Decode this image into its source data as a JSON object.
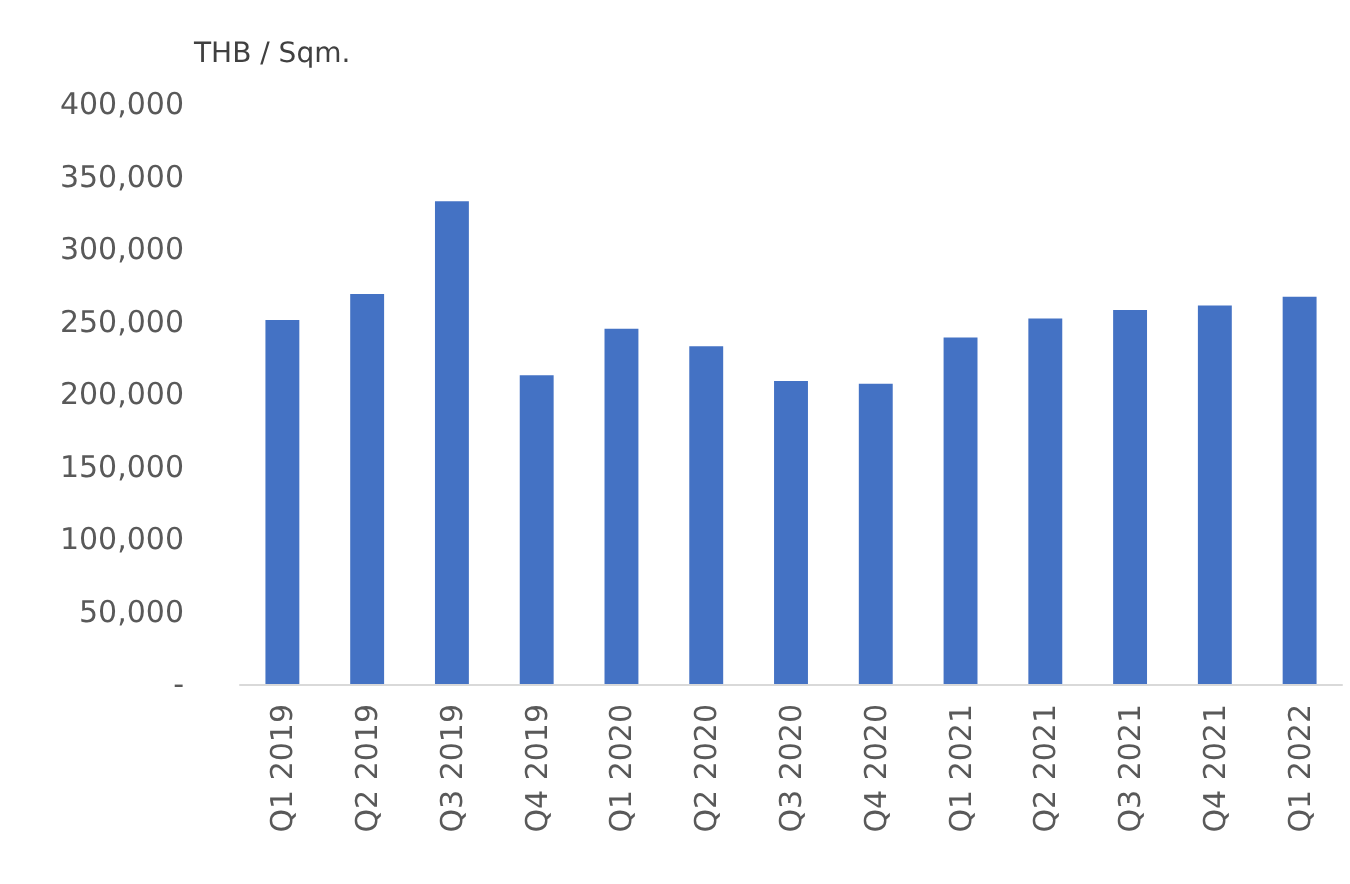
{
  "chart_data": {
    "type": "bar",
    "ylabel": "THB / Sqm.",
    "categories": [
      "Q1 2019",
      "Q2 2019",
      "Q3 2019",
      "Q4 2019",
      "Q1 2020",
      "Q2 2020",
      "Q3 2020",
      "Q4 2020",
      "Q1 2021",
      "Q2 2021",
      "Q3 2021",
      "Q4 2021",
      "Q1 2022"
    ],
    "values": [
      251000,
      269000,
      333000,
      213000,
      245000,
      233000,
      209000,
      207000,
      239000,
      252000,
      258000,
      261000,
      267000
    ],
    "color": "#4472c4",
    "ylim": [
      0,
      400000
    ],
    "yticks": [
      {
        "value": 0,
        "label": "-"
      },
      {
        "value": 50000,
        "label": "50,000"
      },
      {
        "value": 100000,
        "label": "100,000"
      },
      {
        "value": 150000,
        "label": "150,000"
      },
      {
        "value": 200000,
        "label": "200,000"
      },
      {
        "value": 250000,
        "label": "250,000"
      },
      {
        "value": 300000,
        "label": "300,000"
      },
      {
        "value": 350000,
        "label": "350,000"
      },
      {
        "value": 400000,
        "label": "400,000"
      }
    ],
    "grid": false
  }
}
